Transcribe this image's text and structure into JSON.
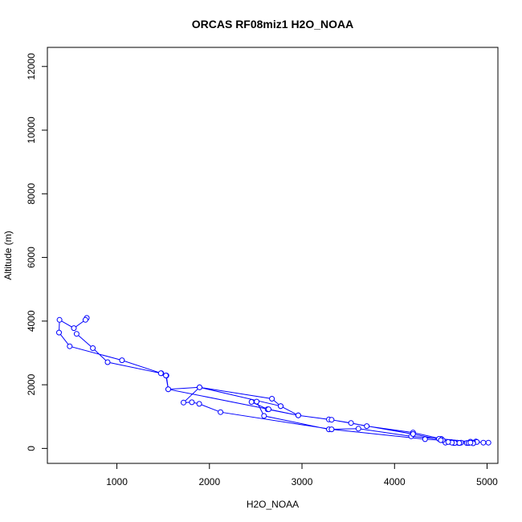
{
  "chart_data": {
    "type": "line",
    "title": "ORCAS RF08miz1 H2O_NOAA",
    "xlabel": "H2O_NOAA",
    "ylabel": "Altitude (m)",
    "xlim": [
      249,
      5117
    ],
    "ylim": [
      -470,
      12600
    ],
    "xticks": [
      {
        "value": 1000,
        "label": "1000"
      },
      {
        "value": 2000,
        "label": "2000"
      },
      {
        "value": 3000,
        "label": "3000"
      },
      {
        "value": 4000,
        "label": "4000"
      },
      {
        "value": 5000,
        "label": "5000"
      }
    ],
    "yticks": [
      {
        "value": 0,
        "label": "0"
      },
      {
        "value": 2000,
        "label": "2000"
      },
      {
        "value": 4000,
        "label": "4000"
      },
      {
        "value": 6000,
        "label": "6000"
      },
      {
        "value": 8000,
        "label": "8000"
      },
      {
        "value": 10000,
        "label": "10000"
      },
      {
        "value": 12000,
        "label": "12000"
      }
    ],
    "colors": {
      "series": "#0000ff",
      "axis": "#000000"
    },
    "grid": false,
    "legend": "none",
    "series": [
      {
        "x": [
          675,
          660,
          535,
          380,
          375,
          490,
          1055,
          1480,
          1535,
          1555,
          1893,
          2675,
          2770,
          2960,
          3290,
          3530,
          3700,
          4200,
          4505,
          4820,
          4720,
          4880,
          4960,
          5015,
          4890,
          4850,
          4780,
          4700,
          4680,
          4640,
          4610,
          4550,
          4480,
          4180,
          3610,
          3290,
          2590,
          2510,
          2455,
          2628,
          2960,
          3320,
          4200,
          4520,
          4650,
          4700,
          4850,
          4800,
          4820,
          4700,
          4650,
          4620,
          4580,
          4500,
          4330,
          3320,
          2120,
          1890,
          1810,
          1720,
          1893,
          2770,
          2960,
          2640,
          1555,
          1530,
          1475,
          900,
          740,
          565
        ],
        "y": [
          4100,
          4040,
          3780,
          4040,
          3640,
          3210,
          2770,
          2360,
          2290,
          1860,
          1920,
          1560,
          1330,
          1040,
          910,
          800,
          700,
          500,
          300,
          210,
          180,
          220,
          180,
          180,
          200,
          180,
          170,
          170,
          180,
          170,
          200,
          180,
          300,
          380,
          620,
          600,
          1020,
          1470,
          1460,
          1230,
          1040,
          900,
          450,
          260,
          180,
          170,
          160,
          170,
          180,
          170,
          170,
          180,
          200,
          260,
          290,
          600,
          1140,
          1400,
          1450,
          1440,
          1920,
          1330,
          1040,
          1230,
          1860,
          2290,
          2360,
          2710,
          3150,
          3600
        ]
      }
    ]
  }
}
